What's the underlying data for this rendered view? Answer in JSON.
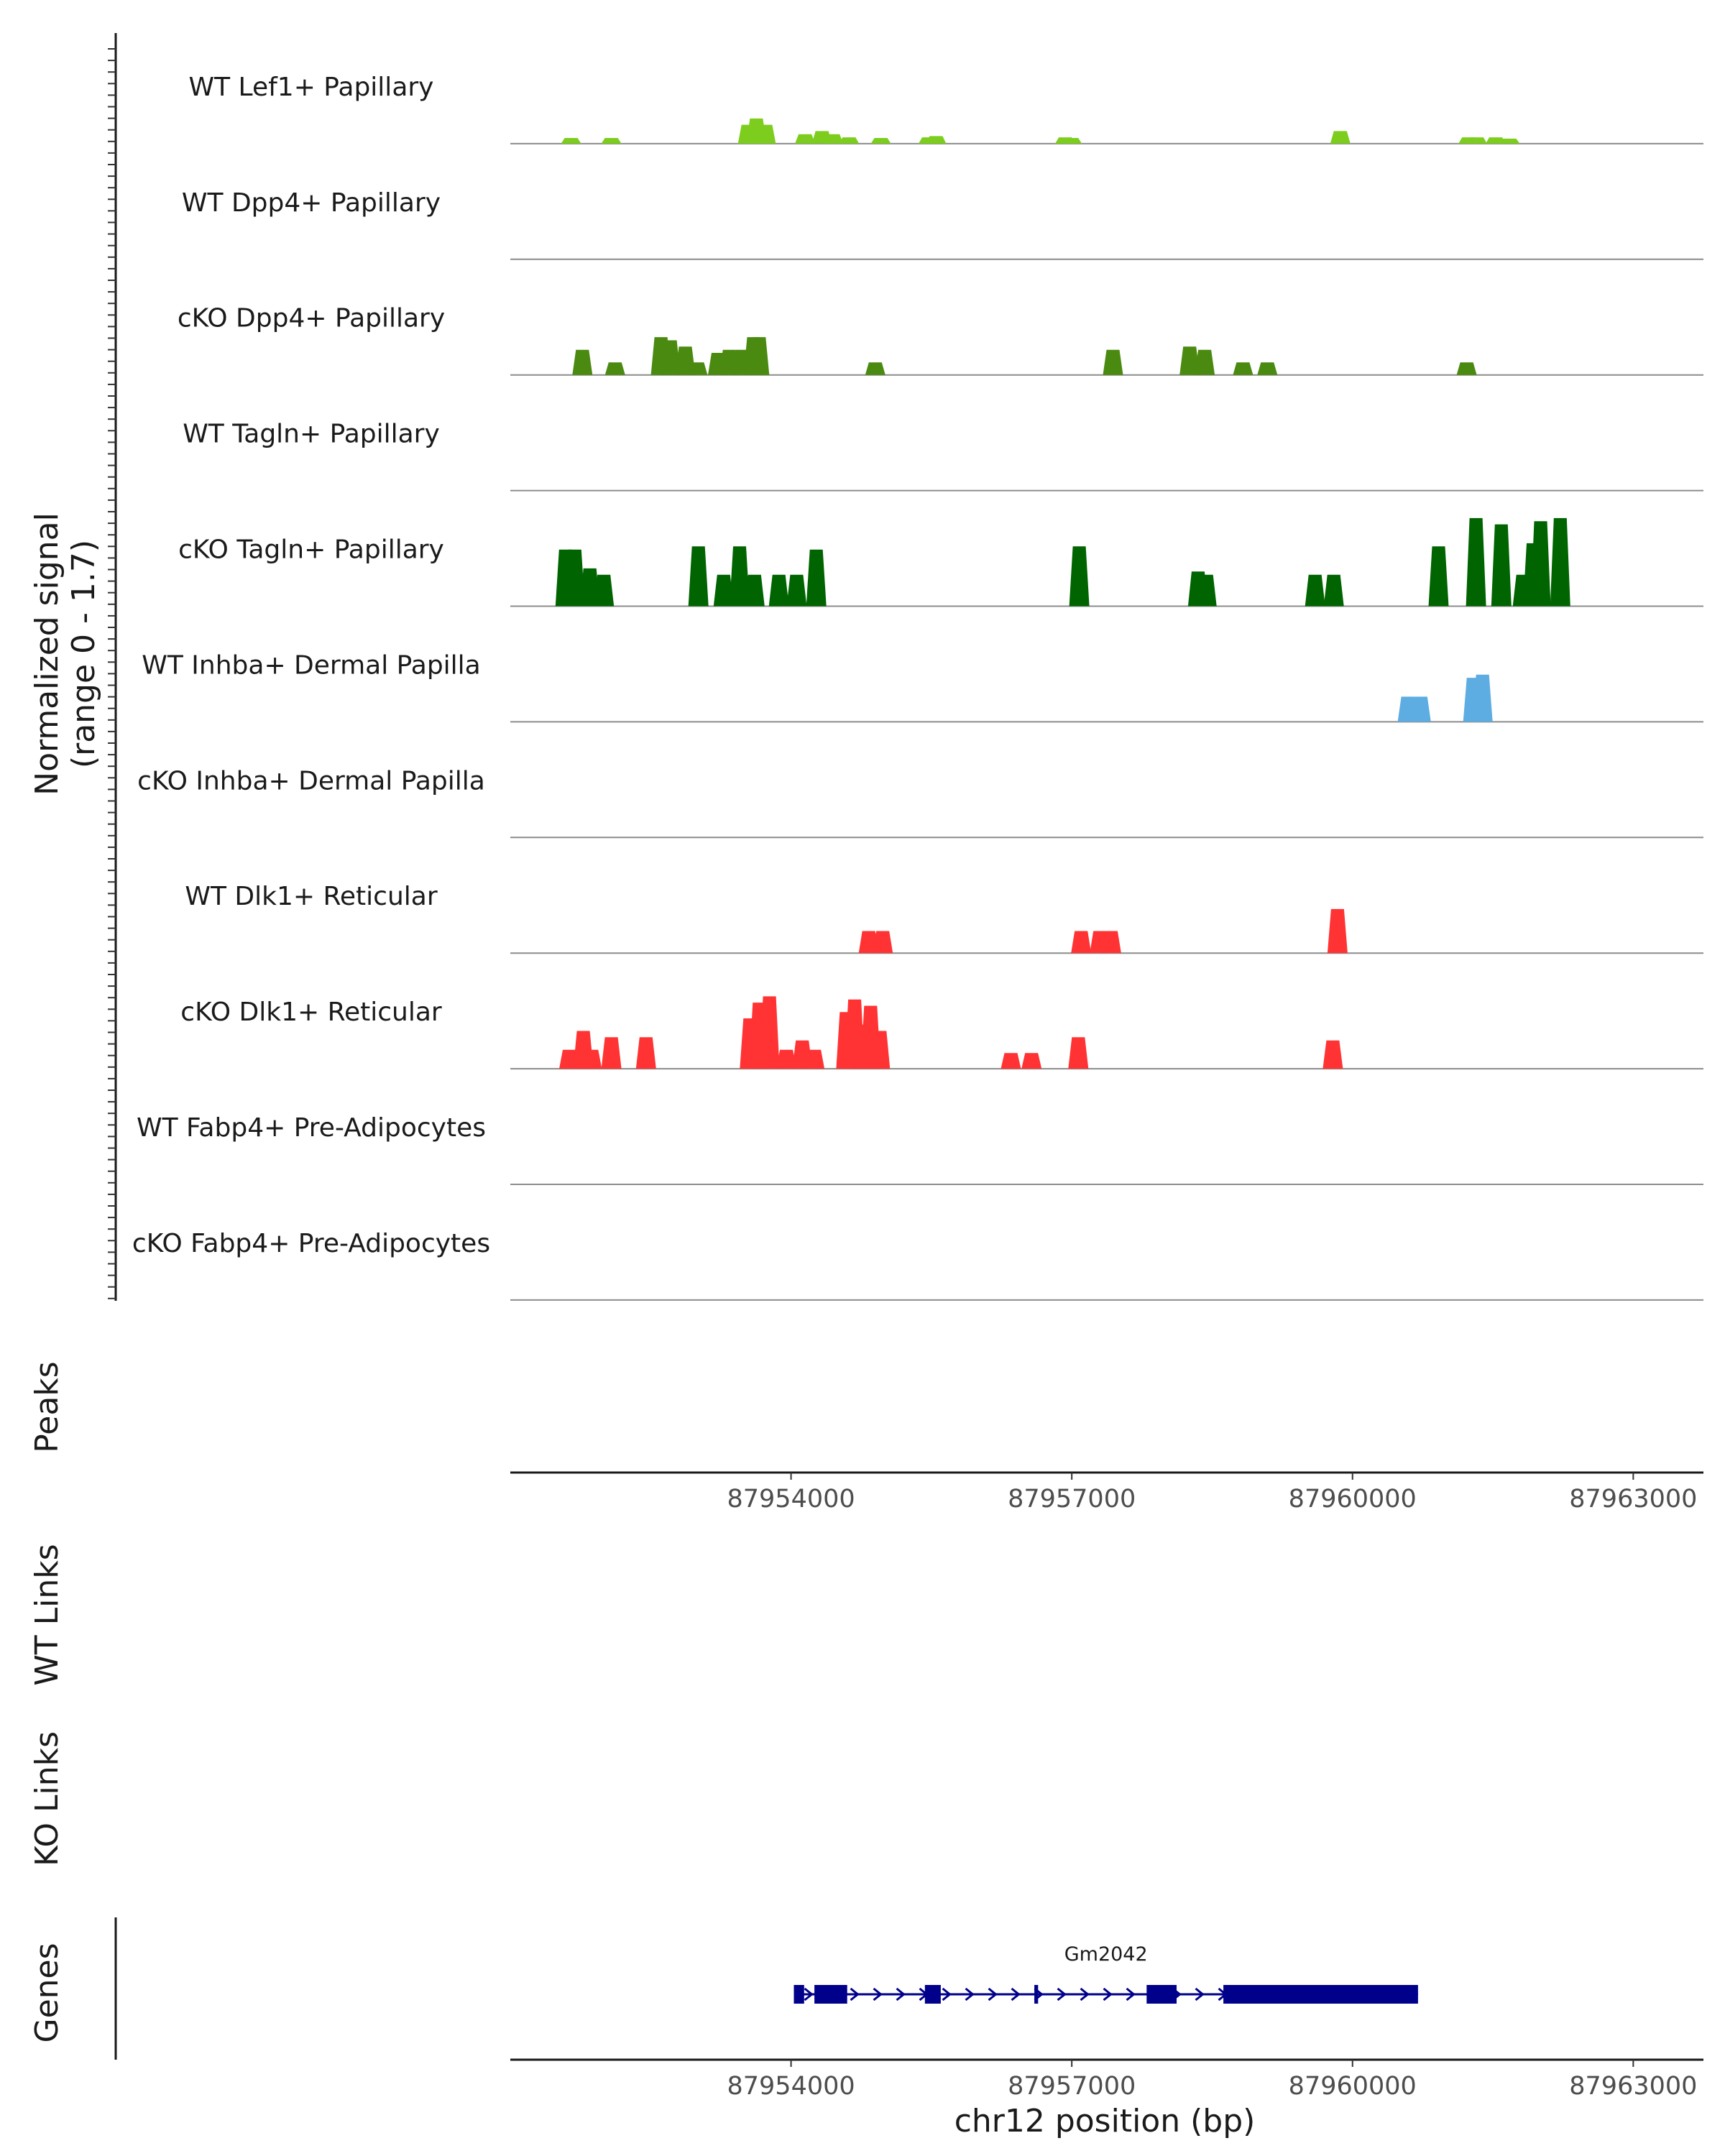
{
  "panels": {
    "signal_ylabel_line1": "Normalized signal",
    "signal_ylabel_line2": "(range 0 - 1.7)",
    "peaks_label": "Peaks",
    "wt_links_label": "WT Links",
    "ko_links_label": "KO Links",
    "genes_label": "Genes"
  },
  "chart_data": {
    "type": "area",
    "title": "",
    "chromosome": "chr12",
    "xlabel": "chr12 position (bp)",
    "ylabel": "Normalized signal (range 0 - 1.7)",
    "xlim": [
      87951000,
      87963750
    ],
    "ylim": [
      0,
      1.7
    ],
    "x_ticks": [
      87954000,
      87957000,
      87960000,
      87963000
    ],
    "x_tick_labels": [
      "87954000",
      "87957000",
      "87960000",
      "87963000"
    ],
    "tracks": [
      {
        "label": "WT Lef1+ Papillary",
        "color": "#7CCD1E",
        "peaks": [
          [
            87951650,
            0.09
          ],
          [
            87952080,
            0.09
          ],
          [
            87953540,
            0.3
          ],
          [
            87953630,
            0.4
          ],
          [
            87953730,
            0.3
          ],
          [
            87954150,
            0.15
          ],
          [
            87954330,
            0.2
          ],
          [
            87954450,
            0.15
          ],
          [
            87954620,
            0.1
          ],
          [
            87954960,
            0.09
          ],
          [
            87955470,
            0.1
          ],
          [
            87955550,
            0.12
          ],
          [
            87956930,
            0.1
          ],
          [
            87957000,
            0.09
          ],
          [
            87959870,
            0.2
          ],
          [
            87961240,
            0.1
          ],
          [
            87961330,
            0.1
          ],
          [
            87961530,
            0.1
          ],
          [
            87961680,
            0.08
          ]
        ]
      },
      {
        "label": "WT Dpp4+ Papillary",
        "color": "#6BA61A",
        "peaks": []
      },
      {
        "label": "cKO Dpp4+ Papillary",
        "color": "#4A8A10",
        "peaks": [
          [
            87951770,
            0.4
          ],
          [
            87952120,
            0.2
          ],
          [
            87952610,
            0.6
          ],
          [
            87952710,
            0.55
          ],
          [
            87952870,
            0.45
          ],
          [
            87953000,
            0.2
          ],
          [
            87953220,
            0.35
          ],
          [
            87953340,
            0.4
          ],
          [
            87953480,
            0.4
          ],
          [
            87953600,
            0.6
          ],
          [
            87953660,
            0.6
          ],
          [
            87954900,
            0.2
          ],
          [
            87957440,
            0.4
          ],
          [
            87958260,
            0.45
          ],
          [
            87958420,
            0.4
          ],
          [
            87958830,
            0.2
          ],
          [
            87959090,
            0.2
          ],
          [
            87961220,
            0.2
          ]
        ]
      },
      {
        "label": "WT Tagln+ Papillary",
        "color": "#2E7D15",
        "peaks": []
      },
      {
        "label": "cKO Tagln+ Papillary",
        "color": "#006400",
        "peaks": [
          [
            87951590,
            0.9
          ],
          [
            87951690,
            0.9
          ],
          [
            87951850,
            0.6
          ],
          [
            87952000,
            0.5
          ],
          [
            87953010,
            0.95
          ],
          [
            87953280,
            0.5
          ],
          [
            87953450,
            0.95
          ],
          [
            87953610,
            0.5
          ],
          [
            87953870,
            0.5
          ],
          [
            87954060,
            0.5
          ],
          [
            87954270,
            0.9
          ],
          [
            87957080,
            0.95
          ],
          [
            87958350,
            0.55
          ],
          [
            87958440,
            0.5
          ],
          [
            87959600,
            0.5
          ],
          [
            87959800,
            0.5
          ],
          [
            87960920,
            0.95
          ],
          [
            87961320,
            1.4
          ],
          [
            87961590,
            1.3
          ],
          [
            87961820,
            0.5
          ],
          [
            87961930,
            1.0
          ],
          [
            87962010,
            1.35
          ],
          [
            87962220,
            1.4
          ]
        ]
      },
      {
        "label": "WT Inhba+ Dermal Papilla",
        "color": "#5DADE2",
        "peaks": [
          [
            87960590,
            0.4
          ],
          [
            87960730,
            0.4
          ],
          [
            87961290,
            0.7
          ],
          [
            87961390,
            0.75
          ]
        ]
      },
      {
        "label": "cKO Inhba+ Dermal Papilla",
        "color": "#E74C3C",
        "peaks": []
      },
      {
        "label": "WT Dlk1+ Reticular",
        "color": "#FF3333",
        "peaks": [
          [
            87954830,
            0.35
          ],
          [
            87954980,
            0.35
          ],
          [
            87957100,
            0.35
          ],
          [
            87957300,
            0.35
          ],
          [
            87957420,
            0.35
          ],
          [
            87959840,
            0.7
          ]
        ]
      },
      {
        "label": "cKO Dlk1+ Reticular",
        "color": "#FF3333",
        "peaks": [
          [
            87951630,
            0.3
          ],
          [
            87951780,
            0.6
          ],
          [
            87951870,
            0.3
          ],
          [
            87952080,
            0.5
          ],
          [
            87952450,
            0.5
          ],
          [
            87953560,
            0.8
          ],
          [
            87953660,
            1.05
          ],
          [
            87953770,
            1.15
          ],
          [
            87953950,
            0.3
          ],
          [
            87954120,
            0.45
          ],
          [
            87954250,
            0.3
          ],
          [
            87954590,
            0.9
          ],
          [
            87954680,
            1.1
          ],
          [
            87954780,
            0.7
          ],
          [
            87954850,
            1.0
          ],
          [
            87954950,
            0.6
          ],
          [
            87956350,
            0.25
          ],
          [
            87956570,
            0.25
          ],
          [
            87957070,
            0.5
          ],
          [
            87959790,
            0.45
          ]
        ]
      },
      {
        "label": "WT Fabp4+ Pre-Adipocytes",
        "color": "#B0B0B0",
        "peaks": []
      },
      {
        "label": "cKO Fabp4+ Pre-Adipocytes",
        "color": "#909090",
        "peaks": []
      }
    ],
    "gene": {
      "name": "Gm2042",
      "strand": "+",
      "start": 87954030,
      "end": 87960700,
      "exons": [
        [
          87954030,
          87954140
        ],
        [
          87954250,
          87954600
        ],
        [
          87955430,
          87955600
        ],
        [
          87956600,
          87956640
        ],
        [
          87957800,
          87958120
        ],
        [
          87958620,
          87960700
        ]
      ]
    }
  }
}
